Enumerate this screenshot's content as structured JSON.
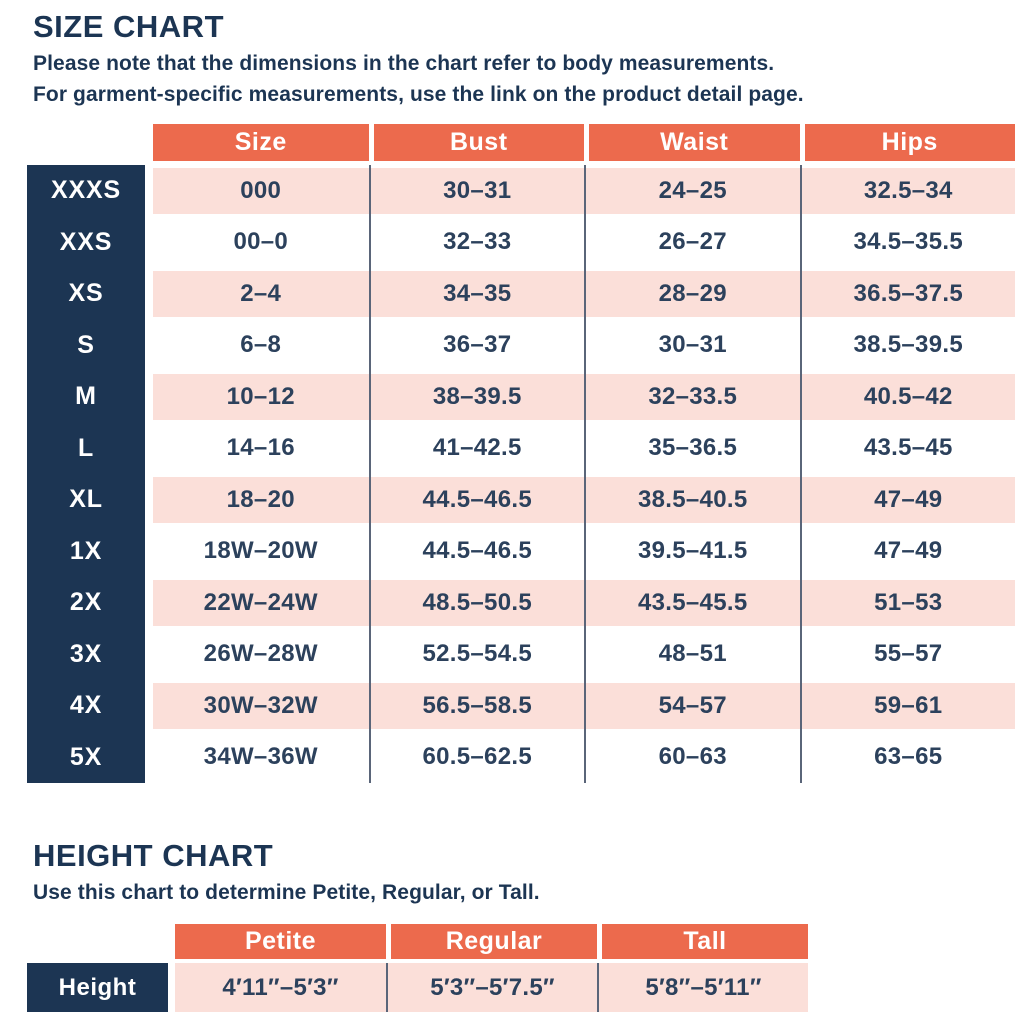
{
  "colors": {
    "accent_coral": "#EC6A4D",
    "navy": "#1C3553",
    "pink_row": "#FBDFD9",
    "cell_text": "#2C415C",
    "separator_line": "#5A6579",
    "background": "#FFFFFF"
  },
  "size_chart": {
    "title": "SIZE CHART",
    "note_line1": "Please note that the dimensions in the chart refer to body measurements.",
    "note_line2": "For garment-specific measurements, use the link on the product detail page.",
    "columns": [
      "Size",
      "Bust",
      "Waist",
      "Hips"
    ],
    "rows": [
      {
        "label": "XXXS",
        "values": [
          "000",
          "30–31",
          "24–25",
          "32.5–34"
        ]
      },
      {
        "label": "XXS",
        "values": [
          "00–0",
          "32–33",
          "26–27",
          "34.5–35.5"
        ]
      },
      {
        "label": "XS",
        "values": [
          "2–4",
          "34–35",
          "28–29",
          "36.5–37.5"
        ]
      },
      {
        "label": "S",
        "values": [
          "6–8",
          "36–37",
          "30–31",
          "38.5–39.5"
        ]
      },
      {
        "label": "M",
        "values": [
          "10–12",
          "38–39.5",
          "32–33.5",
          "40.5–42"
        ]
      },
      {
        "label": "L",
        "values": [
          "14–16",
          "41–42.5",
          "35–36.5",
          "43.5–45"
        ]
      },
      {
        "label": "XL",
        "values": [
          "18–20",
          "44.5–46.5",
          "38.5–40.5",
          "47–49"
        ]
      },
      {
        "label": "1X",
        "values": [
          "18W–20W",
          "44.5–46.5",
          "39.5–41.5",
          "47–49"
        ]
      },
      {
        "label": "2X",
        "values": [
          "22W–24W",
          "48.5–50.5",
          "43.5–45.5",
          "51–53"
        ]
      },
      {
        "label": "3X",
        "values": [
          "26W–28W",
          "52.5–54.5",
          "48–51",
          "55–57"
        ]
      },
      {
        "label": "4X",
        "values": [
          "30W–32W",
          "56.5–58.5",
          "54–57",
          "59–61"
        ]
      },
      {
        "label": "5X",
        "values": [
          "34W–36W",
          "60.5–62.5",
          "60–63",
          "63–65"
        ]
      }
    ]
  },
  "height_chart": {
    "title": "HEIGHT CHART",
    "note": "Use this chart to determine Petite, Regular, or Tall.",
    "columns": [
      "Petite",
      "Regular",
      "Tall"
    ],
    "row_label": "Height",
    "values": [
      "4′11″–5′3″",
      "5′3″–5′7.5″",
      "5′8″–5′11″"
    ]
  }
}
